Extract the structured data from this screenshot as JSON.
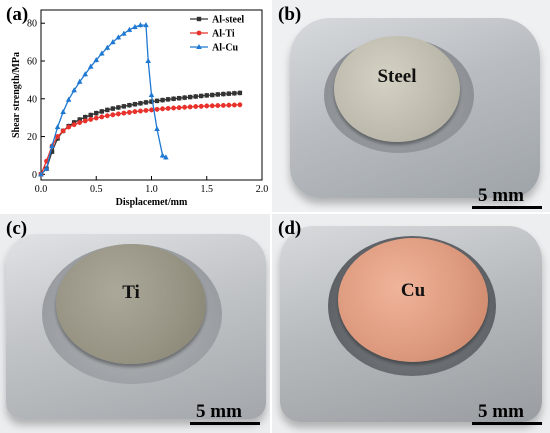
{
  "figure": {
    "panel_a_label": "(a)",
    "panels": [
      {
        "label": "(b)",
        "material": "Steel",
        "scale_text": "5 mm"
      },
      {
        "label": "(c)",
        "material": "Ti",
        "scale_text": "5 mm"
      },
      {
        "label": "(d)",
        "material": "Cu",
        "scale_text": "5 mm"
      }
    ]
  },
  "chart_data": {
    "type": "line",
    "title": "",
    "xlabel": "Displacemet/mm",
    "ylabel": "Shear strength/MPa",
    "xlim": [
      0,
      2.0
    ],
    "ylim": [
      -3,
      87
    ],
    "xticks": [
      "0.0",
      "0.5",
      "1.0",
      "1.5",
      "2.0"
    ],
    "yticks": [
      "0",
      "20",
      "40",
      "60",
      "80"
    ],
    "legend_position": "top-right",
    "grid": false,
    "series": [
      {
        "name": "Al-steel",
        "color": "#333333",
        "marker": "square",
        "x": [
          0,
          0.05,
          0.1,
          0.15,
          0.2,
          0.25,
          0.3,
          0.35,
          0.4,
          0.45,
          0.5,
          0.55,
          0.6,
          0.65,
          0.7,
          0.75,
          0.8,
          0.85,
          0.9,
          0.95,
          1.0,
          1.05,
          1.1,
          1.15,
          1.2,
          1.25,
          1.3,
          1.35,
          1.4,
          1.45,
          1.5,
          1.55,
          1.6,
          1.65,
          1.7,
          1.75,
          1.8
        ],
        "y": [
          0,
          3,
          12,
          19,
          23,
          25.5,
          27.5,
          29,
          30.3,
          31.4,
          32.4,
          33.3,
          34.1,
          34.8,
          35.4,
          36,
          36.6,
          37.1,
          37.6,
          38.1,
          38.5,
          38.9,
          39.3,
          39.7,
          40,
          40.3,
          40.6,
          40.9,
          41.2,
          41.5,
          41.8,
          42,
          42.3,
          42.5,
          42.7,
          42.9,
          43.1
        ]
      },
      {
        "name": "Al-Ti",
        "color": "#e8322b",
        "marker": "circle",
        "x": [
          0,
          0.05,
          0.1,
          0.15,
          0.2,
          0.25,
          0.3,
          0.35,
          0.4,
          0.45,
          0.5,
          0.55,
          0.6,
          0.65,
          0.7,
          0.75,
          0.8,
          0.85,
          0.9,
          0.95,
          1.0,
          1.05,
          1.1,
          1.15,
          1.2,
          1.25,
          1.3,
          1.35,
          1.4,
          1.45,
          1.5,
          1.55,
          1.6,
          1.65,
          1.7,
          1.75,
          1.8
        ],
        "y": [
          0,
          7,
          15,
          20,
          23,
          25,
          26.3,
          27.4,
          28.3,
          29.1,
          29.8,
          30.4,
          31,
          31.5,
          32,
          32.4,
          32.8,
          33.2,
          33.5,
          33.8,
          34.1,
          34.4,
          34.7,
          34.9,
          35.1,
          35.3,
          35.5,
          35.7,
          35.9,
          36,
          36.2,
          36.3,
          36.4,
          36.5,
          36.6,
          36.7,
          36.8
        ]
      },
      {
        "name": "Al-Cu",
        "color": "#1f78d1",
        "marker": "triangle",
        "x": [
          0,
          0.05,
          0.1,
          0.15,
          0.2,
          0.25,
          0.3,
          0.35,
          0.4,
          0.45,
          0.5,
          0.55,
          0.6,
          0.65,
          0.7,
          0.75,
          0.8,
          0.85,
          0.9,
          0.95,
          0.97,
          1.0,
          1.05,
          1.1,
          1.13
        ],
        "y": [
          0,
          3,
          15,
          25,
          33,
          39.5,
          44.5,
          49,
          53,
          57,
          60.5,
          64,
          67,
          70,
          72.5,
          74.5,
          76.5,
          78,
          79,
          79,
          60,
          42,
          24,
          10,
          9
        ]
      }
    ]
  }
}
